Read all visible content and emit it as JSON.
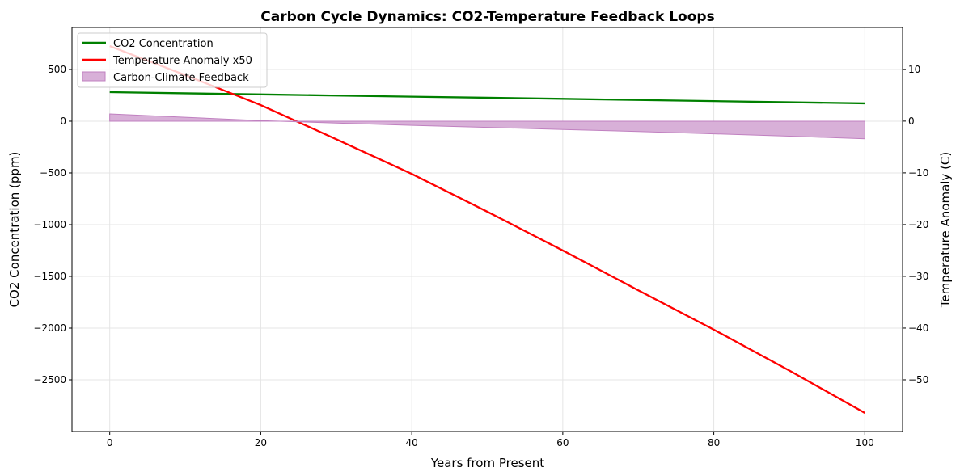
{
  "chart_data": {
    "type": "line",
    "title": "Carbon Cycle Dynamics: CO2-Temperature Feedback Loops",
    "xlabel": "Years from Present",
    "ylabel": "CO2 Concentration (ppm)",
    "ylabel_right": "Temperature Anomaly (C)",
    "xlim": [
      -5,
      105
    ],
    "ylim": [
      -3000,
      906
    ],
    "ylim_right": [
      -60,
      18.1
    ],
    "xticks": [
      0,
      20,
      40,
      60,
      80,
      100
    ],
    "yticks": [
      -2500,
      -2000,
      -1500,
      -1000,
      -500,
      0,
      500
    ],
    "yticks_right": [
      -50,
      -40,
      -30,
      -20,
      -10,
      0,
      10
    ],
    "grid": true,
    "legend_position": "upper-left",
    "x": [
      0,
      10,
      20,
      30,
      40,
      50,
      60,
      70,
      80,
      90,
      100
    ],
    "series": [
      {
        "name": "CO2 Concentration",
        "axis": "left",
        "kind": "line",
        "color": "#008000",
        "values": [
          281,
          270,
          259,
          248,
          237,
          227,
          216,
          205,
          194,
          183,
          172
        ]
      },
      {
        "name": "Temperature Anomaly x50",
        "axis": "right",
        "kind": "line",
        "color": "#ff0000",
        "values": [
          14.5,
          8.9,
          3.1,
          -3.5,
          -10.2,
          -17.5,
          -25.0,
          -32.7,
          -40.3,
          -48.2,
          -56.4
        ]
      },
      {
        "name": "Carbon-Climate Feedback",
        "axis": "left",
        "kind": "fill",
        "color": "#d8b0d8",
        "edge": "#c080c0",
        "values": [
          70,
          38,
          6,
          -18,
          -40,
          -60,
          -80,
          -100,
          -122,
          -145,
          -170
        ]
      }
    ]
  }
}
